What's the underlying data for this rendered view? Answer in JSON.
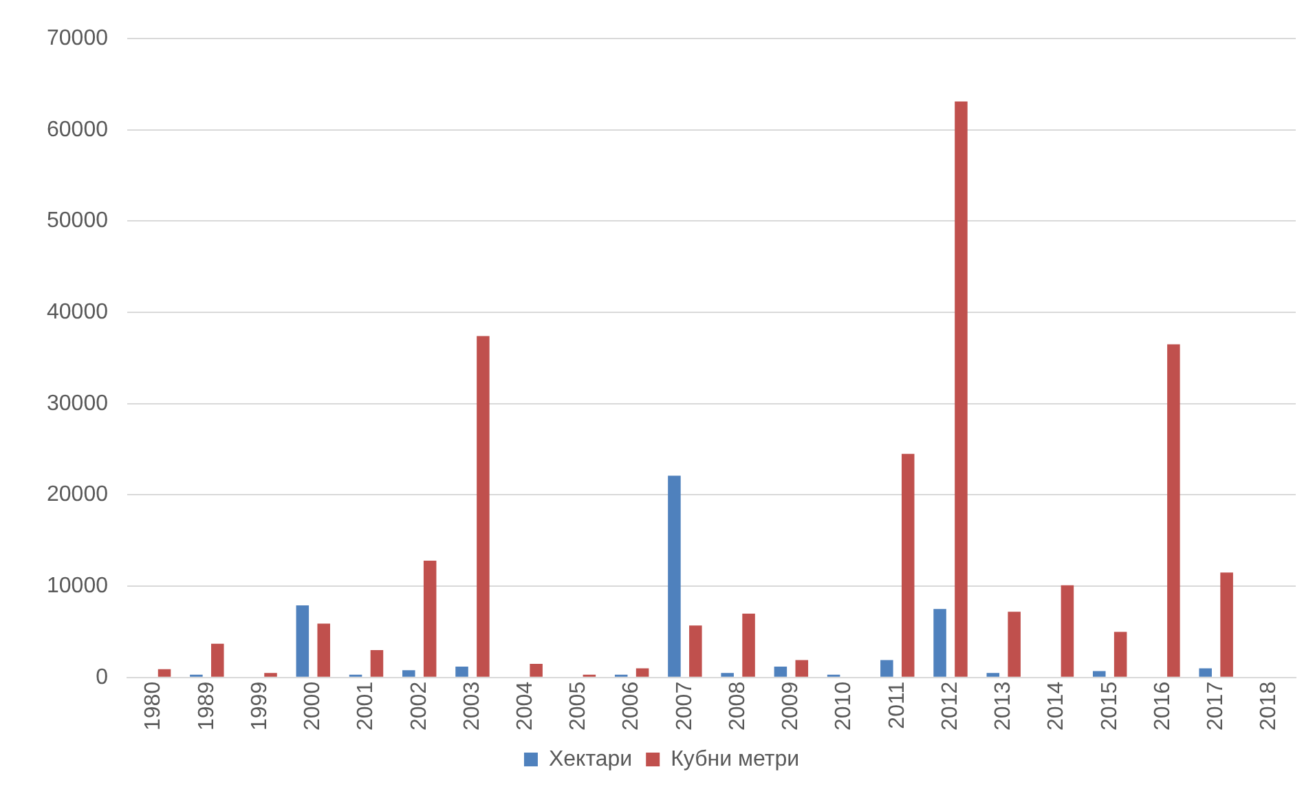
{
  "chart_data": {
    "type": "bar",
    "categories": [
      "1980",
      "1989",
      "1999",
      "2000",
      "2001",
      "2002",
      "2003",
      "2004",
      "2005",
      "2006",
      "2007",
      "2008",
      "2009",
      "2010",
      "2011",
      "2012",
      "2013",
      "2014",
      "2015",
      "2016",
      "2017",
      "2018"
    ],
    "series": [
      {
        "name": "Хектари",
        "color": "#4f81bd",
        "values": [
          0,
          300,
          0,
          7900,
          300,
          800,
          1200,
          0,
          0,
          300,
          22100,
          500,
          1200,
          300,
          1900,
          7500,
          500,
          0,
          700,
          0,
          1000,
          0
        ]
      },
      {
        "name": "Кубни метри",
        "color": "#c0504d",
        "values": [
          900,
          3700,
          500,
          5900,
          3000,
          12800,
          37400,
          1500,
          300,
          1000,
          5700,
          7000,
          1900,
          0,
          24500,
          63100,
          7200,
          10100,
          5000,
          36500,
          11500,
          0
        ]
      }
    ],
    "ylim": [
      0,
      70000
    ],
    "yticks": [
      0,
      10000,
      20000,
      30000,
      40000,
      50000,
      60000,
      70000
    ],
    "grid": "y",
    "legend": "bottom"
  }
}
